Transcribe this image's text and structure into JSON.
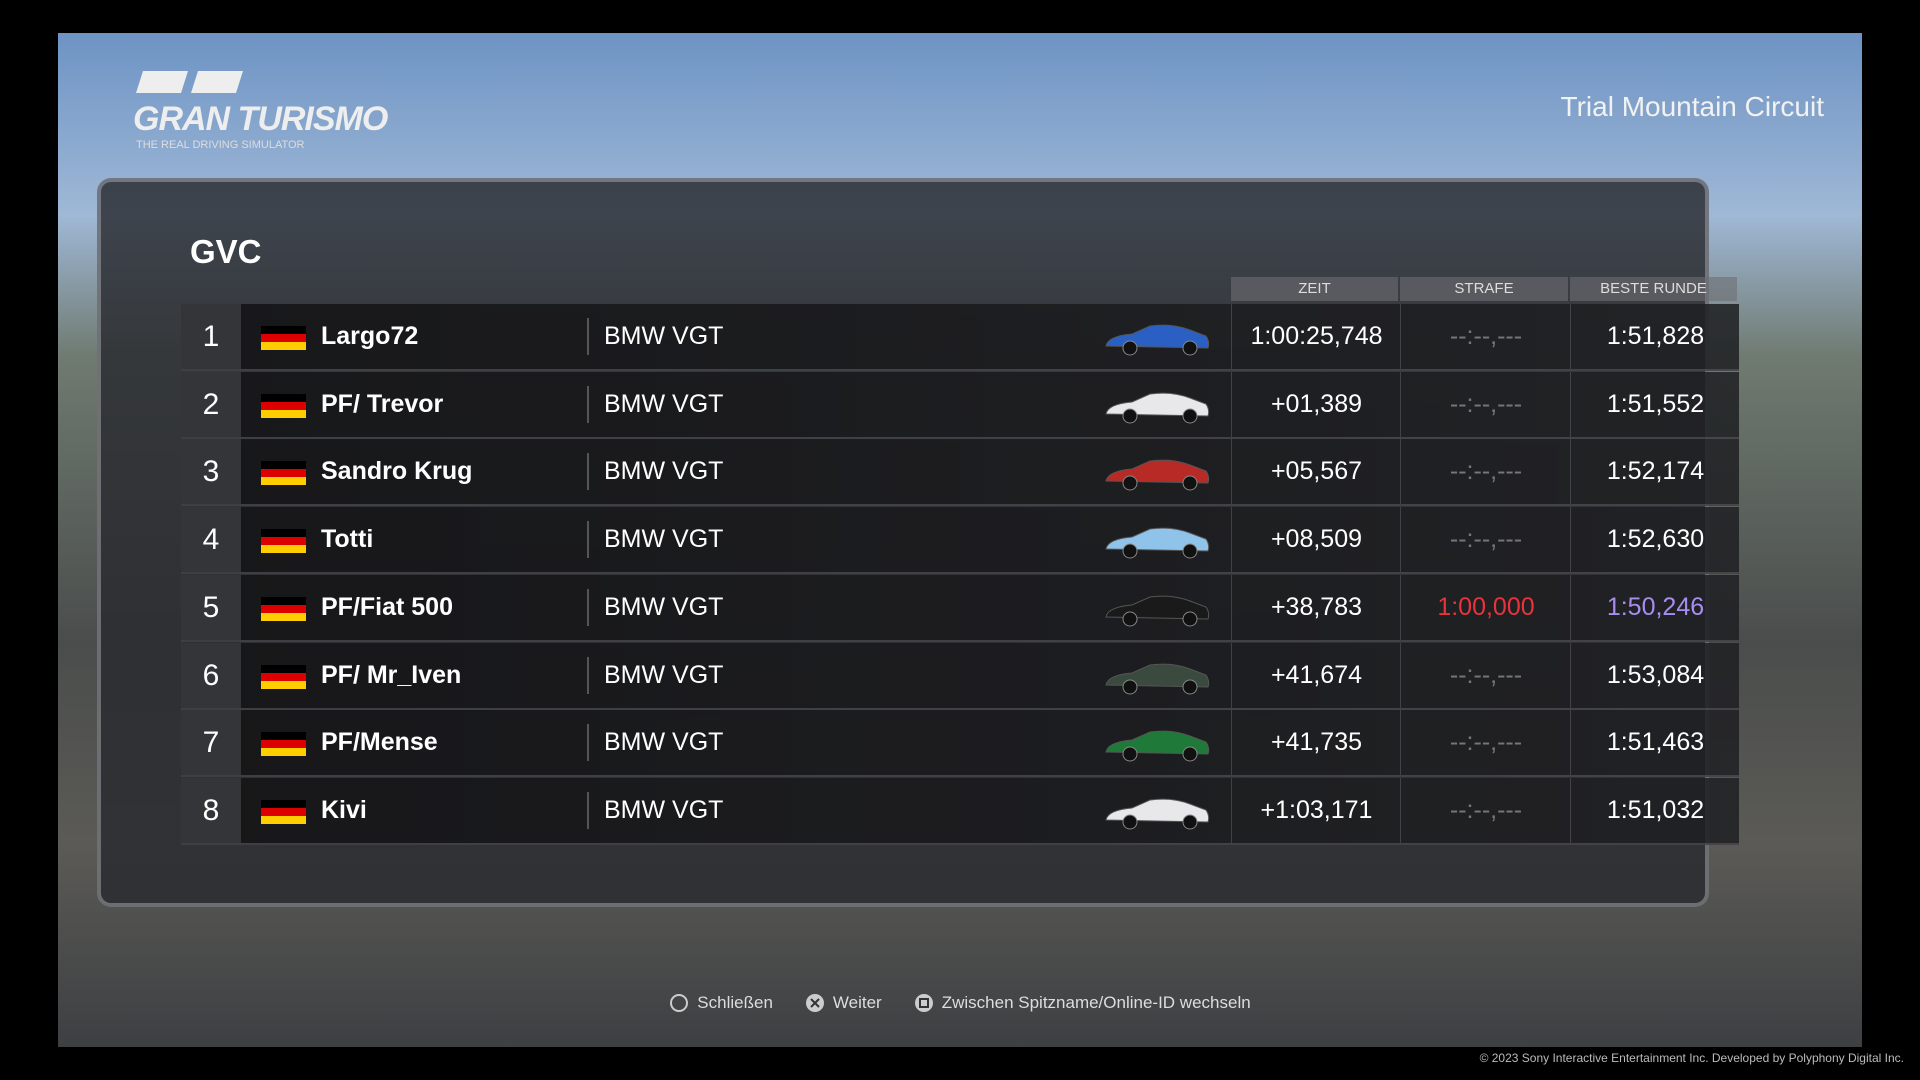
{
  "logo": {
    "title": "GRAN TURISMO",
    "subtitle": "THE REAL DRIVING SIMULATOR"
  },
  "track": "Trial Mountain Circuit",
  "table": {
    "title": "GVC",
    "headers": [
      "ZEIT",
      "STRAFE",
      "BESTE RUNDE"
    ],
    "rows": [
      [
        "1",
        "Largo72",
        "BMW VGT",
        "1:00:25,748",
        "--:--,---",
        "1:51,828"
      ],
      [
        "2",
        "PF/ Trevor",
        "BMW VGT",
        "+01,389",
        "--:--,---",
        "1:51,552"
      ],
      [
        "3",
        "Sandro Krug",
        "BMW VGT",
        "+05,567",
        "--:--,---",
        "1:52,174"
      ],
      [
        "4",
        "Totti",
        "BMW VGT",
        "+08,509",
        "--:--,---",
        "1:52,630"
      ],
      [
        "5",
        "PF/Fiat 500",
        "BMW VGT",
        "+38,783",
        "1:00,000",
        "1:50,246"
      ],
      [
        "6",
        "PF/ Mr_Iven",
        "BMW VGT",
        "+41,674",
        "--:--,---",
        "1:53,084"
      ],
      [
        "7",
        "PF/Mense",
        "BMW VGT",
        "+41,735",
        "--:--,---",
        "1:51,463"
      ],
      [
        "8",
        "Kivi",
        "BMW VGT",
        "+1:03,171",
        "--:--,---",
        "1:51,032"
      ]
    ]
  },
  "footer": {
    "buttons": [
      "Schließen",
      "Weiter",
      "Zwischen Spitzname/Online-ID wechseln"
    ],
    "copyright": "© 2023 Sony Interactive Entertainment Inc. Developed by Polyphony Digital Inc."
  }
}
